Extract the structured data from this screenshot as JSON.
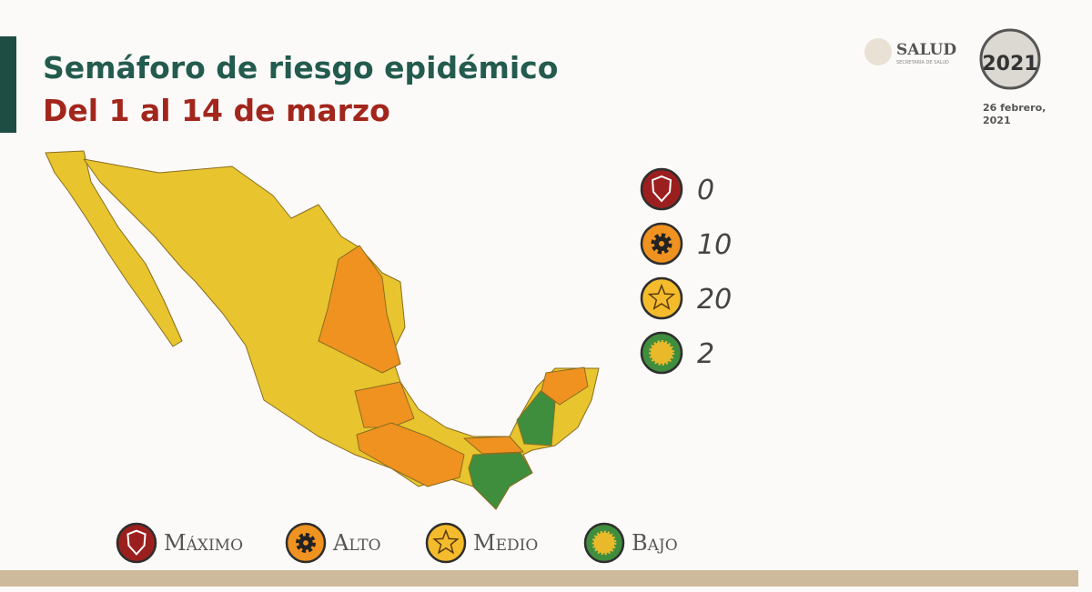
{
  "header": {
    "title": "Semáforo de riesgo epidémico",
    "subtitle": "Del 1 al 14 de marzo"
  },
  "logos": {
    "salud": "SALUD",
    "salud_sub": "SECRETARÍA DE SALUD",
    "year": "2021"
  },
  "date": [
    "26 febrero,",
    "2021"
  ],
  "levels": [
    {
      "name": "Máximo",
      "count": 0,
      "color": "#9c1f1f"
    },
    {
      "name": "Alto",
      "count": 10,
      "color": "#f0921f"
    },
    {
      "name": "Medio",
      "count": 20,
      "color": "#f4bc2c"
    },
    {
      "name": "Bajo",
      "count": 2,
      "color": "#3f8e3d"
    }
  ]
}
